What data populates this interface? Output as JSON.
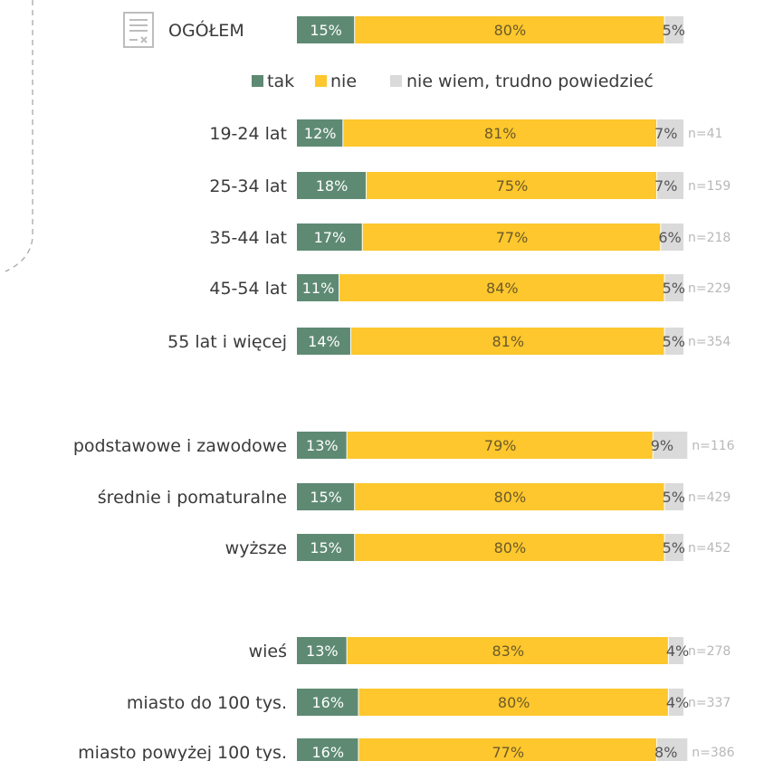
{
  "chart_data": {
    "type": "bar",
    "orientation": "horizontal",
    "stacked": true,
    "percent_stacked": true,
    "colors": {
      "tak": "#5e8a73",
      "nie": "#fdc72d",
      "nie_wiem": "#dadada"
    },
    "legend": {
      "placement": "top",
      "items": [
        "tak",
        "nie",
        "nie wiem, trudno powiedzieć"
      ]
    },
    "series": [
      {
        "name": "tak",
        "key": "tak"
      },
      {
        "name": "nie",
        "key": "nie"
      },
      {
        "name": "nie wiem, trudno powiedzieć",
        "key": "nie_wiem"
      }
    ],
    "rows": [
      {
        "label": "OGÓŁEM",
        "values": [
          15,
          80,
          5
        ],
        "n": ""
      },
      {
        "label": "19-24 lat",
        "values": [
          12,
          81,
          7
        ],
        "n": "n=41"
      },
      {
        "label": "25-34 lat",
        "values": [
          18,
          75,
          7
        ],
        "n": "n=159"
      },
      {
        "label": "35-44 lat",
        "values": [
          17,
          77,
          6
        ],
        "n": "n=218"
      },
      {
        "label": "45-54 lat",
        "values": [
          11,
          84,
          5
        ],
        "n": "n=229"
      },
      {
        "label": "55 lat i więcej",
        "values": [
          14,
          81,
          5
        ],
        "n": "n=354"
      },
      {
        "label": "podstawowe i zawodowe",
        "values": [
          13,
          79,
          9
        ],
        "n": "n=116"
      },
      {
        "label": "średnie i pomaturalne",
        "values": [
          15,
          80,
          5
        ],
        "n": "n=429"
      },
      {
        "label": "wyższe",
        "values": [
          15,
          80,
          5
        ],
        "n": "n=452"
      },
      {
        "label": "wieś",
        "values": [
          13,
          83,
          4
        ],
        "n": "n=278"
      },
      {
        "label": "miasto do 100 tys.",
        "values": [
          16,
          80,
          4
        ],
        "n": "n=337"
      },
      {
        "label": "miasto powyżej 100 tys.",
        "values": [
          16,
          77,
          8
        ],
        "n": "n=386"
      }
    ]
  }
}
